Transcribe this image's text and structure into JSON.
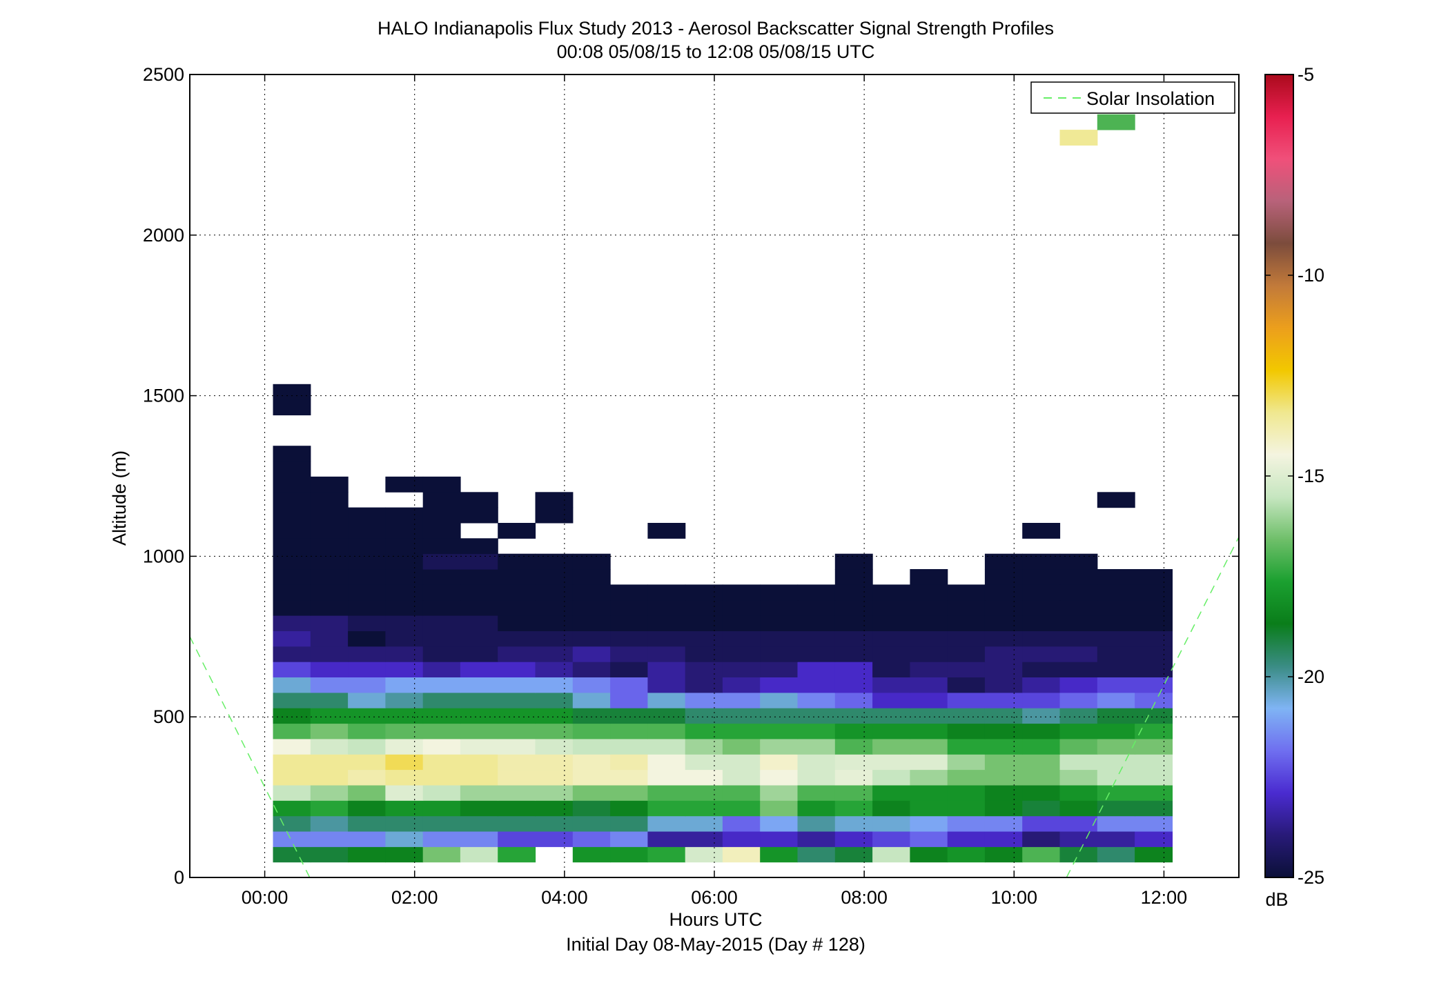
{
  "chart_data": {
    "type": "heatmap",
    "title": "HALO Indianapolis Flux Study 2013 - Aerosol Backscatter Signal Strength Profiles",
    "subtitle": "00:08 05/08/15 to 12:08 05/08/15  UTC",
    "xlabel": "Hours UTC",
    "footer": "Initial Day 08-May-2015 (Day # 128)",
    "ylabel": "Altitude (m)",
    "xlim": [
      -1,
      13
    ],
    "ylim": [
      0,
      2500
    ],
    "grid": true,
    "x_ticks": [
      0,
      2,
      4,
      6,
      8,
      10,
      12
    ],
    "x_tick_labels": [
      "00:00",
      "02:00",
      "04:00",
      "06:00",
      "08:00",
      "10:00",
      "12:00"
    ],
    "y_ticks": [
      0,
      500,
      1000,
      1500,
      2000,
      2500
    ],
    "y_tick_labels": [
      "0",
      "500",
      "1000",
      "1500",
      "2000",
      "2500"
    ],
    "legend": {
      "position": "top-right",
      "entries": [
        "Solar Insolation"
      ]
    },
    "colorbar": {
      "label": "dB",
      "range": [
        -25,
        -5
      ],
      "ticks": [
        -25,
        -20,
        -15,
        -10,
        -5
      ],
      "tick_labels": [
        "-25",
        "-20",
        "-15",
        "-10",
        "-5"
      ]
    },
    "x_centers_hours": [
      0.36,
      0.86,
      1.36,
      1.86,
      2.36,
      2.86,
      3.36,
      3.86,
      4.36,
      4.86,
      5.36,
      5.86,
      6.36,
      6.86,
      7.36,
      7.86,
      8.36,
      8.86,
      9.36,
      9.86,
      10.36,
      10.86,
      11.36,
      11.86
    ],
    "y_centers_m": [
      72,
      120,
      168,
      216,
      264,
      312,
      360,
      408,
      456,
      504,
      552,
      600,
      648,
      696,
      744,
      792,
      840,
      888,
      936,
      984,
      1032,
      1080,
      1128,
      1176,
      1224,
      1272,
      1320,
      1368,
      1416,
      1464,
      1512,
      2304,
      2352
    ],
    "values_db": [
      [
        -19.0,
        -19.0,
        -18.5,
        -18.5,
        -16.5,
        -15.5,
        -17.5,
        null,
        -18.0,
        -18.0,
        -17.5,
        -15.2,
        -14.0,
        -18.0,
        -19.5,
        -19.0,
        -15.5,
        -18.5,
        -18.0,
        -18.5,
        -17.0,
        -19.0,
        -19.5,
        -18.5
      ],
      [
        -21.5,
        -21.5,
        -21.5,
        -20.5,
        -21.5,
        -21.5,
        -22.5,
        -22.5,
        -22.0,
        -21.5,
        -23.5,
        -23.5,
        -23.0,
        -23.0,
        -23.5,
        -23.0,
        -22.5,
        -22.0,
        -23.0,
        -23.0,
        -24.0,
        -23.5,
        -23.5,
        -23.0
      ],
      [
        -19.5,
        -20.0,
        -19.5,
        -19.5,
        -19.5,
        -19.5,
        -19.5,
        -19.5,
        -19.5,
        -19.5,
        -20.5,
        -20.5,
        -22.0,
        -21.0,
        -20.0,
        -20.5,
        -20.5,
        -21.0,
        -21.5,
        -21.5,
        -22.5,
        -22.5,
        -21.5,
        -21.5
      ],
      [
        -18.0,
        -17.5,
        -18.5,
        -18.0,
        -18.0,
        -18.5,
        -18.5,
        -18.5,
        -19.0,
        -18.5,
        -17.5,
        -17.5,
        -17.5,
        -16.5,
        -18.0,
        -17.5,
        -18.5,
        -18.0,
        -18.0,
        -18.5,
        -19.0,
        -18.5,
        -19.0,
        -19.0
      ],
      [
        -15.5,
        -16.0,
        -16.5,
        -15.0,
        -15.5,
        -16.0,
        -16.0,
        -16.0,
        -16.5,
        -16.5,
        -17.0,
        -17.0,
        -17.0,
        -16.0,
        -17.0,
        -17.0,
        -18.0,
        -18.0,
        -18.0,
        -18.5,
        -18.5,
        -18.0,
        -17.5,
        -17.5
      ],
      [
        -13.5,
        -13.5,
        -13.8,
        -13.5,
        -13.5,
        -13.5,
        -13.8,
        -13.8,
        -14.0,
        -14.0,
        -14.5,
        -14.5,
        -15.2,
        -14.5,
        -15.2,
        -14.8,
        -15.5,
        -16.0,
        -16.5,
        -16.5,
        -16.5,
        -16.0,
        -15.5,
        -15.5
      ],
      [
        -13.5,
        -13.5,
        -13.5,
        -13.0,
        -13.5,
        -13.5,
        -13.8,
        -13.8,
        -14.0,
        -13.8,
        -14.5,
        -15.2,
        -15.2,
        -14.2,
        -15.2,
        -15.0,
        -15.0,
        -15.0,
        -16.0,
        -16.5,
        -16.5,
        -15.5,
        -15.5,
        -15.5
      ],
      [
        -14.5,
        -15.2,
        -15.5,
        -14.8,
        -14.5,
        -14.8,
        -14.8,
        -15.2,
        -15.5,
        -15.5,
        -15.5,
        -16.0,
        -16.5,
        -16.0,
        -16.0,
        -17.0,
        -16.5,
        -16.5,
        -17.5,
        -17.5,
        -17.5,
        -16.8,
        -16.5,
        -16.5
      ],
      [
        -17.0,
        -16.5,
        -17.0,
        -16.8,
        -16.8,
        -16.8,
        -16.8,
        -16.8,
        -17.0,
        -17.0,
        -17.0,
        -17.5,
        -17.5,
        -17.5,
        -17.5,
        -18.0,
        -18.0,
        -18.0,
        -18.5,
        -18.5,
        -18.5,
        -18.0,
        -18.0,
        -17.5
      ],
      [
        -18.5,
        -18.0,
        -18.0,
        -18.0,
        -18.0,
        -18.0,
        -18.0,
        -18.0,
        -19.0,
        -19.0,
        -19.0,
        -19.5,
        -19.5,
        -19.5,
        -19.5,
        -19.5,
        -19.5,
        -19.5,
        -19.5,
        -19.5,
        -20.0,
        -19.5,
        -19.0,
        -19.0
      ],
      [
        -19.5,
        -19.5,
        -20.5,
        -20.0,
        -19.5,
        -19.5,
        -19.5,
        -19.5,
        -20.5,
        -22.0,
        -20.5,
        -21.5,
        -21.5,
        -20.5,
        -21.5,
        -22.0,
        -23.0,
        -23.0,
        -22.5,
        -22.5,
        -22.5,
        -22.0,
        -21.5,
        -22.0
      ],
      [
        -20.5,
        -21.5,
        -21.5,
        -21.0,
        -21.0,
        -21.0,
        -21.0,
        -21.0,
        -21.5,
        -22.0,
        -23.5,
        -24.0,
        -23.5,
        -23.0,
        -23.0,
        -23.0,
        -23.5,
        -23.5,
        -24.5,
        -24.0,
        -23.5,
        -23.0,
        -22.5,
        -22.5
      ],
      [
        -22.5,
        -23.0,
        -23.0,
        -23.0,
        -23.5,
        -23.0,
        -23.0,
        -23.5,
        -24.0,
        -24.5,
        -23.5,
        -24.0,
        -24.0,
        -24.0,
        -23.0,
        -23.0,
        -24.5,
        -24.0,
        -24.0,
        -24.0,
        -24.5,
        -24.5,
        -24.5,
        -24.5
      ],
      [
        -24.0,
        -24.0,
        -24.0,
        -24.0,
        -24.5,
        -24.5,
        -24.0,
        -24.0,
        -23.5,
        -24.0,
        -24.0,
        -24.5,
        -24.5,
        -24.5,
        -24.5,
        -24.5,
        -24.5,
        -24.5,
        -24.5,
        -24.0,
        -24.0,
        -24.0,
        -24.5,
        -24.5
      ],
      [
        -23.5,
        -24.0,
        -25.0,
        -24.5,
        -24.5,
        -24.5,
        -24.5,
        -24.5,
        -24.5,
        -24.5,
        -24.5,
        -24.5,
        -24.5,
        -24.5,
        -24.5,
        -24.5,
        -24.5,
        -24.5,
        -24.5,
        -24.5,
        -24.5,
        -24.5,
        -24.5,
        -24.5
      ],
      [
        -24.0,
        -24.0,
        -24.5,
        -24.5,
        -24.5,
        -24.5,
        -25.0,
        -25.0,
        -25.0,
        -25.0,
        -25.0,
        -25.0,
        -25.0,
        -25.0,
        -25.0,
        -25.0,
        -25.0,
        -25.0,
        -25.0,
        -25.0,
        -25.0,
        -25.0,
        -25.0,
        -25.0
      ],
      [
        -25.0,
        -25.0,
        -25.0,
        -25.0,
        -25.0,
        -25.0,
        -25.0,
        -25.0,
        -25.0,
        -25.0,
        -25.0,
        -25.0,
        -25.0,
        -25.0,
        -25.0,
        -25.0,
        -25.0,
        -25.0,
        -25.0,
        -25.0,
        -25.0,
        -25.0,
        -25.0,
        -25.0
      ],
      [
        -25.0,
        -25.0,
        -25.0,
        -25.0,
        -25.0,
        -25.0,
        -25.0,
        -25.0,
        -25.0,
        -25.0,
        -25.0,
        -25.0,
        -25.0,
        -25.0,
        -25.0,
        -25.0,
        -25.0,
        -25.0,
        -25.0,
        -25.0,
        -25.0,
        -25.0,
        -25.0,
        -25.0
      ],
      [
        -25.0,
        -25.0,
        -25.0,
        -25.0,
        -25.0,
        -25.0,
        -25.0,
        -25.0,
        -25.0,
        null,
        null,
        null,
        null,
        null,
        null,
        -25.0,
        null,
        -25.0,
        null,
        -25.0,
        -25.0,
        -25.0,
        -25.0,
        -25.0
      ],
      [
        -25.0,
        -25.0,
        -25.0,
        -25.0,
        -24.5,
        -24.5,
        -25.0,
        -25.0,
        -25.0,
        null,
        null,
        null,
        null,
        null,
        null,
        -25.0,
        null,
        null,
        null,
        -25.0,
        -25.0,
        -25.0,
        null,
        null
      ],
      [
        -25.0,
        -25.0,
        -25.0,
        -25.0,
        -25.0,
        -25.0,
        null,
        null,
        null,
        null,
        null,
        null,
        null,
        null,
        null,
        null,
        null,
        null,
        null,
        null,
        null,
        null,
        null,
        null
      ],
      [
        -25.0,
        -25.0,
        -25.0,
        -25.0,
        -25.0,
        null,
        -25.0,
        null,
        null,
        null,
        -25.0,
        null,
        null,
        null,
        null,
        null,
        null,
        null,
        null,
        null,
        -25.0,
        null,
        null,
        null
      ],
      [
        -25.0,
        -25.0,
        -25.0,
        -25.0,
        -25.0,
        -25.0,
        null,
        -25.0,
        null,
        null,
        null,
        null,
        null,
        null,
        null,
        null,
        null,
        null,
        null,
        null,
        null,
        null,
        null,
        null
      ],
      [
        -25.0,
        -25.0,
        null,
        null,
        -25.0,
        -25.0,
        null,
        -25.0,
        null,
        null,
        null,
        null,
        null,
        null,
        null,
        null,
        null,
        null,
        null,
        null,
        null,
        null,
        -25.0,
        null
      ],
      [
        -25.0,
        -25.0,
        null,
        -25.0,
        -25.0,
        null,
        null,
        null,
        null,
        null,
        null,
        null,
        null,
        null,
        null,
        null,
        null,
        null,
        null,
        null,
        null,
        null,
        null,
        null
      ],
      [
        -25.0,
        null,
        null,
        null,
        null,
        null,
        null,
        null,
        null,
        null,
        null,
        null,
        null,
        null,
        null,
        null,
        null,
        null,
        null,
        null,
        null,
        null,
        null,
        null
      ],
      [
        -25.0,
        null,
        null,
        null,
        null,
        null,
        null,
        null,
        null,
        null,
        null,
        null,
        null,
        null,
        null,
        null,
        null,
        null,
        null,
        null,
        null,
        null,
        null,
        null
      ],
      [
        null,
        null,
        null,
        null,
        null,
        null,
        null,
        null,
        null,
        null,
        null,
        null,
        null,
        null,
        null,
        null,
        null,
        null,
        null,
        null,
        null,
        null,
        null,
        null
      ],
      [
        null,
        null,
        null,
        null,
        null,
        null,
        null,
        null,
        null,
        null,
        null,
        null,
        null,
        null,
        null,
        null,
        null,
        null,
        null,
        null,
        null,
        null,
        null,
        null
      ],
      [
        -25.0,
        null,
        null,
        null,
        null,
        null,
        null,
        null,
        null,
        null,
        null,
        null,
        null,
        null,
        null,
        null,
        null,
        null,
        null,
        null,
        null,
        null,
        null,
        null
      ],
      [
        -25.0,
        null,
        null,
        null,
        null,
        null,
        null,
        null,
        null,
        null,
        null,
        null,
        null,
        null,
        null,
        null,
        null,
        null,
        null,
        null,
        null,
        null,
        null,
        null
      ],
      [
        null,
        null,
        null,
        null,
        null,
        null,
        null,
        null,
        null,
        null,
        null,
        null,
        null,
        null,
        null,
        null,
        null,
        null,
        null,
        null,
        null,
        -13.5,
        null,
        null
      ],
      [
        null,
        null,
        null,
        null,
        null,
        null,
        null,
        null,
        null,
        null,
        null,
        null,
        null,
        null,
        null,
        null,
        null,
        null,
        null,
        null,
        null,
        null,
        -17.0,
        null
      ]
    ],
    "series": [
      {
        "name": "Solar Insolation",
        "segments": [
          {
            "x": [
              -1.0,
              0.6
            ],
            "y": [
              750,
              0
            ]
          },
          {
            "x": [
              10.7,
              13.0
            ],
            "y": [
              0,
              1060
            ]
          }
        ]
      }
    ],
    "colors": {
      "colormap": [
        "#0b1038",
        "#281a78",
        "#4a2bd0",
        "#6f6ff0",
        "#7fb4f4",
        "#3a8c84",
        "#0a7d1a",
        "#1ba030",
        "#6fbf6a",
        "#c6e6c0",
        "#f4f4e0",
        "#f0e890",
        "#f2c800",
        "#ec9f1c",
        "#c27a3a",
        "#7c4c3c",
        "#b8627a",
        "#f0507a",
        "#e82050",
        "#aa0a1c"
      ],
      "legend_line": "#66ee66"
    }
  }
}
